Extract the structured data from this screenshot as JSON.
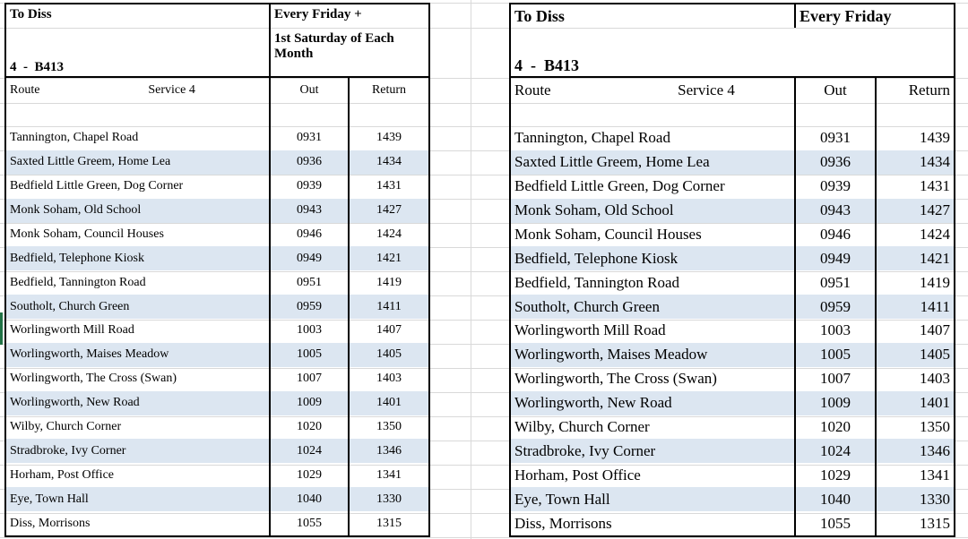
{
  "page": {
    "background_color": "#ffffff",
    "gridline_color": "#d9d9d9",
    "row_alt_color": "#dce6f1",
    "table_border_color": "#000000",
    "selection_accent_color": "#217346"
  },
  "left_table": {
    "title": "To Diss",
    "frequency_line1": "Every Friday +",
    "frequency_line2": "1st Saturday of Each Month",
    "route_code": "4  -  B413",
    "headers": {
      "route": "Route",
      "service": "Service 4",
      "out": "Out",
      "return": "Return"
    },
    "rows": [
      {
        "stop": "Tannington, Chapel Road",
        "out": "0931",
        "return": "1439"
      },
      {
        "stop": "Saxted Little Greem, Home Lea",
        "out": "0936",
        "return": "1434"
      },
      {
        "stop": "Bedfield Little Green, Dog Corner",
        "out": "0939",
        "return": "1431"
      },
      {
        "stop": "Monk Soham, Old School",
        "out": "0943",
        "return": "1427"
      },
      {
        "stop": "Monk Soham, Council Houses",
        "out": "0946",
        "return": "1424"
      },
      {
        "stop": "Bedfield, Telephone Kiosk",
        "out": "0949",
        "return": "1421"
      },
      {
        "stop": "Bedfield, Tannington Road",
        "out": "0951",
        "return": "1419"
      },
      {
        "stop": "Southolt, Church Green",
        "out": "0959",
        "return": "1411"
      },
      {
        "stop": "Worlingworth Mill Road",
        "out": "1003",
        "return": "1407"
      },
      {
        "stop": "Worlingworth, Maises Meadow",
        "out": "1005",
        "return": "1405"
      },
      {
        "stop": "Worlingworth, The Cross (Swan)",
        "out": "1007",
        "return": "1403"
      },
      {
        "stop": "Worlingworth, New Road",
        "out": "1009",
        "return": "1401"
      },
      {
        "stop": "Wilby, Church Corner",
        "out": "1020",
        "return": "1350"
      },
      {
        "stop": "Stradbroke, Ivy Corner",
        "out": "1024",
        "return": "1346"
      },
      {
        "stop": "Horham, Post Office",
        "out": "1029",
        "return": "1341"
      },
      {
        "stop": "Eye, Town Hall",
        "out": "1040",
        "return": "1330"
      },
      {
        "stop": "Diss, Morrisons",
        "out": "1055",
        "return": "1315"
      }
    ]
  },
  "right_table": {
    "title": "To Diss",
    "frequency_line1": "Every Friday",
    "route_code": "4  -  B413",
    "headers": {
      "route": "Route",
      "service": "Service 4",
      "out": "Out",
      "return": "Return"
    },
    "rows": [
      {
        "stop": "Tannington, Chapel Road",
        "out": "0931",
        "return": "1439"
      },
      {
        "stop": "Saxted Little Greem, Home Lea",
        "out": "0936",
        "return": "1434"
      },
      {
        "stop": "Bedfield Little Green, Dog Corner",
        "out": "0939",
        "return": "1431"
      },
      {
        "stop": "Monk Soham, Old School",
        "out": "0943",
        "return": "1427"
      },
      {
        "stop": "Monk Soham, Council Houses",
        "out": "0946",
        "return": "1424"
      },
      {
        "stop": "Bedfield, Telephone Kiosk",
        "out": "0949",
        "return": "1421"
      },
      {
        "stop": "Bedfield, Tannington Road",
        "out": "0951",
        "return": "1419"
      },
      {
        "stop": "Southolt, Church Green",
        "out": "0959",
        "return": "1411"
      },
      {
        "stop": "Worlingworth Mill Road",
        "out": "1003",
        "return": "1407"
      },
      {
        "stop": "Worlingworth, Maises Meadow",
        "out": "1005",
        "return": "1405"
      },
      {
        "stop": "Worlingworth, The Cross (Swan)",
        "out": "1007",
        "return": "1403"
      },
      {
        "stop": "Worlingworth, New Road",
        "out": "1009",
        "return": "1401"
      },
      {
        "stop": "Wilby, Church Corner",
        "out": "1020",
        "return": "1350"
      },
      {
        "stop": "Stradbroke, Ivy Corner",
        "out": "1024",
        "return": "1346"
      },
      {
        "stop": "Horham, Post Office",
        "out": "1029",
        "return": "1341"
      },
      {
        "stop": "Eye, Town Hall",
        "out": "1040",
        "return": "1330"
      },
      {
        "stop": "Diss, Morrisons",
        "out": "1055",
        "return": "1315"
      }
    ]
  }
}
